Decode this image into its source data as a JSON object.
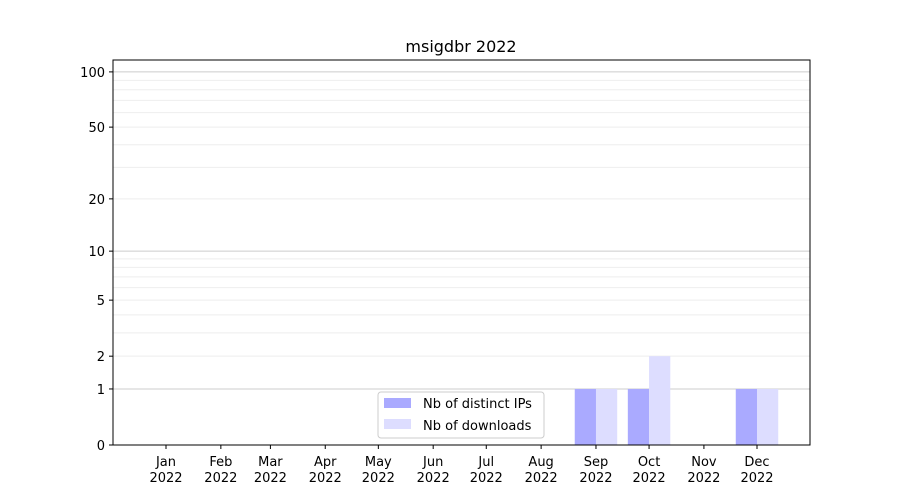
{
  "chart_data": {
    "type": "bar",
    "title": "msigdbr 2022",
    "xlabel": "",
    "ylabel": "",
    "y_scale": "log(y+1)",
    "ylim": [
      0,
      116
    ],
    "y_ticks": [
      0,
      1,
      2,
      5,
      10,
      20,
      50,
      100
    ],
    "y_tick_labels": [
      "0",
      "1",
      "2",
      "5",
      "10",
      "20",
      "50",
      "100"
    ],
    "grid": "horizontal major and minor",
    "categories": [
      "Jan\n2022",
      "Feb\n2022",
      "Mar\n2022",
      "Apr\n2022",
      "May\n2022",
      "Jun\n2022",
      "Jul\n2022",
      "Aug\n2022",
      "Sep\n2022",
      "Oct\n2022",
      "Nov\n2022",
      "Dec\n2022"
    ],
    "x_tick_labels": [
      {
        "month": "Jan",
        "year": "2022"
      },
      {
        "month": "Feb",
        "year": "2022"
      },
      {
        "month": "Mar",
        "year": "2022"
      },
      {
        "month": "Apr",
        "year": "2022"
      },
      {
        "month": "May",
        "year": "2022"
      },
      {
        "month": "Jun",
        "year": "2022"
      },
      {
        "month": "Jul",
        "year": "2022"
      },
      {
        "month": "Aug",
        "year": "2022"
      },
      {
        "month": "Sep",
        "year": "2022"
      },
      {
        "month": "Oct",
        "year": "2022"
      },
      {
        "month": "Nov",
        "year": "2022"
      },
      {
        "month": "Dec",
        "year": "2022"
      }
    ],
    "series": [
      {
        "name": "Nb of distinct IPs",
        "color": "#aaaaff",
        "values": [
          0,
          0,
          0,
          0,
          0,
          0,
          0,
          0,
          1,
          1,
          0,
          1
        ]
      },
      {
        "name": "Nb of downloads",
        "color": "#ddddff",
        "values": [
          0,
          0,
          0,
          0,
          0,
          0,
          0,
          0,
          1,
          2,
          0,
          1
        ]
      }
    ],
    "legend_placement": "lower-center"
  }
}
